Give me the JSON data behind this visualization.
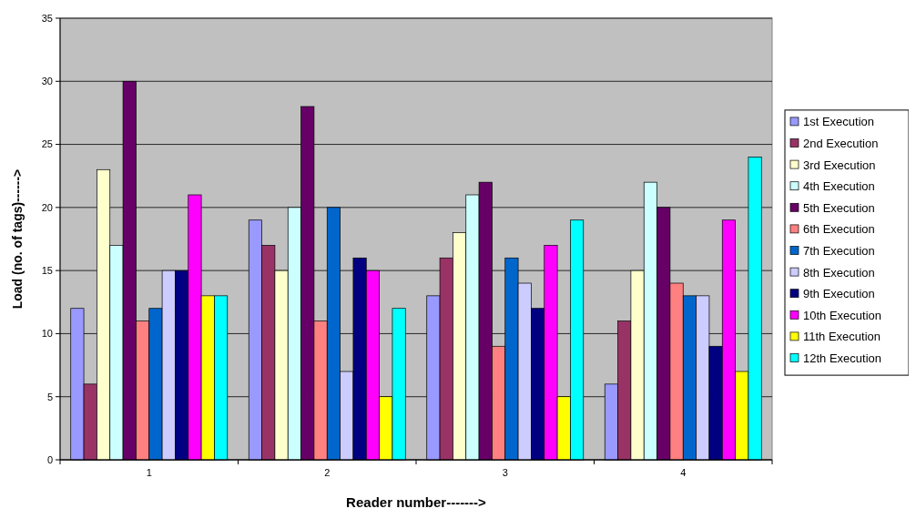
{
  "chart_data": {
    "type": "bar",
    "xlabel": "Reader number------->",
    "ylabel": "Load (no. of tags)------>",
    "categories": [
      "1",
      "2",
      "3",
      "4"
    ],
    "ylim": [
      0,
      35
    ],
    "yticks": [
      0,
      5,
      10,
      15,
      20,
      25,
      30,
      35
    ],
    "grid": "y",
    "legend": "right",
    "series": [
      {
        "name": "1st Execution",
        "color": "#9999ff",
        "values": [
          12,
          19,
          13,
          6
        ]
      },
      {
        "name": "2nd Execution",
        "color": "#993366",
        "values": [
          6,
          17,
          16,
          11
        ]
      },
      {
        "name": "3rd Execution",
        "color": "#ffffcc",
        "values": [
          23,
          15,
          18,
          15
        ]
      },
      {
        "name": "4th Execution",
        "color": "#ccffff",
        "values": [
          17,
          20,
          21,
          22
        ]
      },
      {
        "name": "5th Execution",
        "color": "#660066",
        "values": [
          30,
          28,
          22,
          20
        ]
      },
      {
        "name": "6th Execution",
        "color": "#ff8080",
        "values": [
          11,
          11,
          9,
          14
        ]
      },
      {
        "name": "7th Execution",
        "color": "#0066cc",
        "values": [
          12,
          20,
          16,
          13
        ]
      },
      {
        "name": "8th Execution",
        "color": "#ccccff",
        "values": [
          15,
          7,
          14,
          13
        ]
      },
      {
        "name": "9th Execution",
        "color": "#000080",
        "values": [
          15,
          16,
          12,
          9
        ]
      },
      {
        "name": "10th Execution",
        "color": "#ff00ff",
        "values": [
          21,
          15,
          17,
          19
        ]
      },
      {
        "name": "11th Execution",
        "color": "#ffff00",
        "values": [
          13,
          5,
          5,
          7
        ]
      },
      {
        "name": "12th Execution",
        "color": "#00ffff",
        "values": [
          13,
          12,
          19,
          24
        ]
      }
    ]
  }
}
